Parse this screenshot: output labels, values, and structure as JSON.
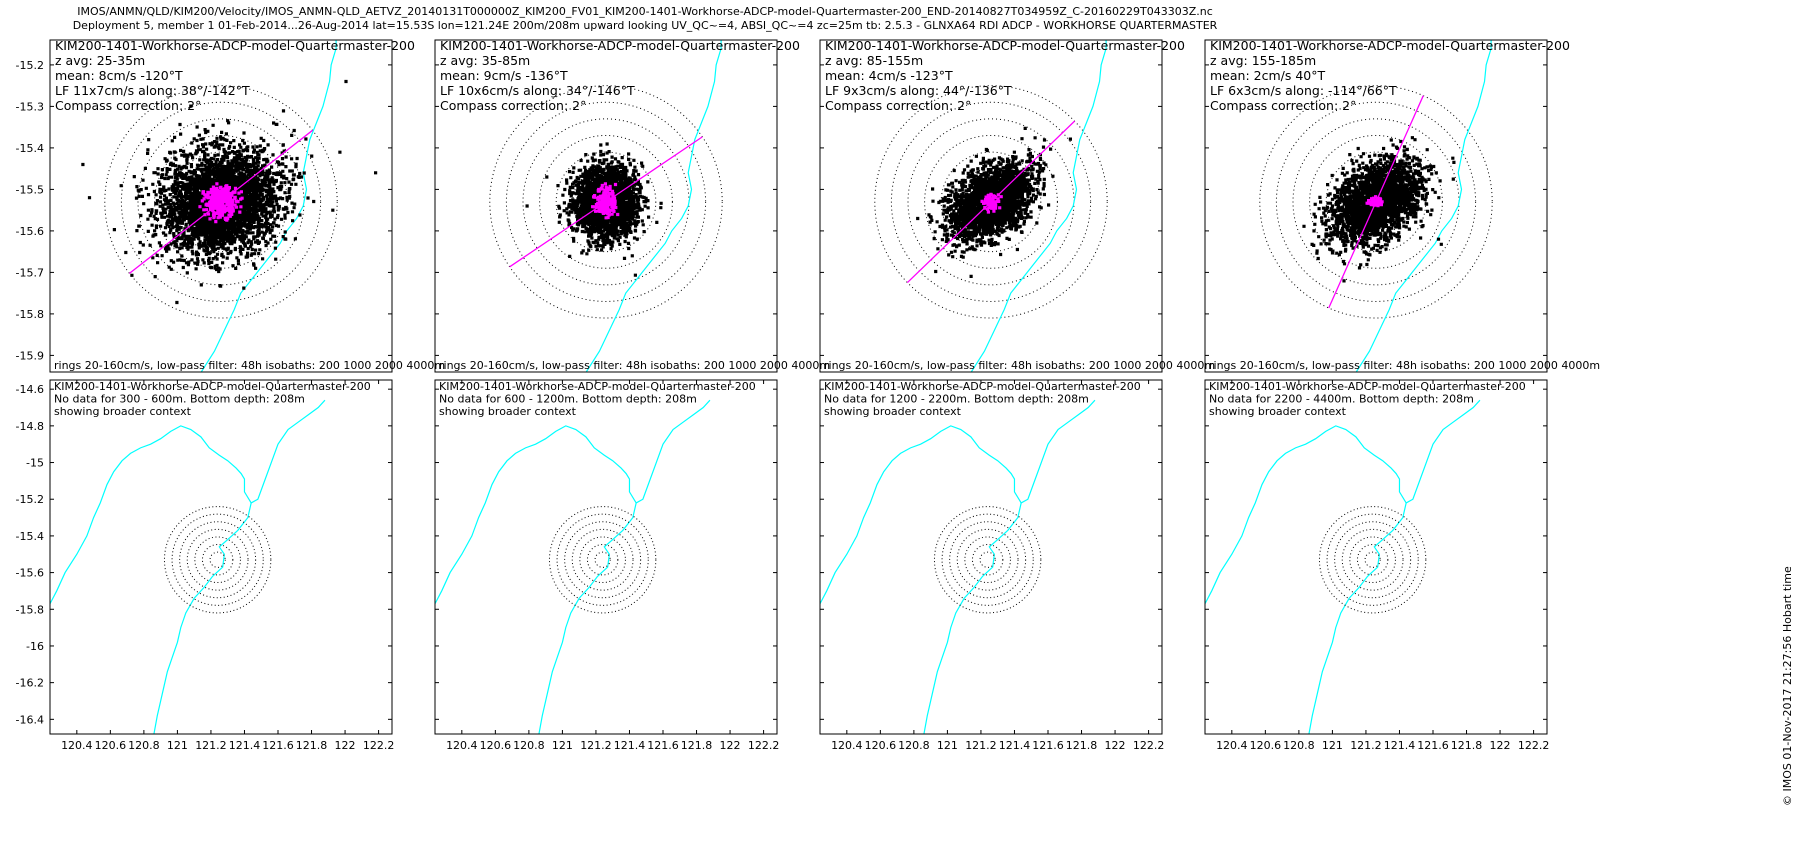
{
  "header": {
    "title_line1": "IMOS/ANMN/QLD/KIM200/Velocity/IMOS_ANMN-QLD_AETVZ_20140131T000000Z_KIM200_FV01_KIM200-1401-Workhorse-ADCP-model-Quartermaster-200_END-20140827T034959Z_C-20160229T043303Z.nc",
    "title_line2": "Deployment 5, member 1 01-Feb-2014...26-Aug-2014 lat=15.53S lon=121.24E 200m/208m upward looking UV_QC~=4, ABSI_QC~=4 zc=25m tb: 2.5.3 - GLNXA64 RDI ADCP - WORKHORSE QUARTERMASTER"
  },
  "side_note": "© IMOS 01-Nov-2017 21:27:56 Hobart time",
  "colors": {
    "scatter": "#000000",
    "lowpass": "#ff00ff",
    "coast": "#00ffff",
    "rings": "#000000",
    "axes": "#000000"
  },
  "chart_data": {
    "type": "scatter",
    "top_row": {
      "ylim": [
        -15.94,
        -15.14
      ],
      "xlim": [
        120.72,
        121.76
      ],
      "yticks": [
        -15.2,
        -15.3,
        -15.4,
        -15.5,
        -15.6,
        -15.7,
        -15.8,
        -15.9
      ],
      "center": [
        121.24,
        -15.53
      ],
      "footer": "rings 20-160cm/s, low-pass filter: 48h isobaths: 200 1000 2000 4000m",
      "coastline": [
        [
          121.59,
          -15.14
        ],
        [
          121.59,
          -15.16
        ],
        [
          121.575,
          -15.2
        ],
        [
          121.57,
          -15.24
        ],
        [
          121.55,
          -15.3
        ],
        [
          121.53,
          -15.34
        ],
        [
          121.51,
          -15.38
        ],
        [
          121.5,
          -15.42
        ],
        [
          121.49,
          -15.46
        ],
        [
          121.5,
          -15.5
        ],
        [
          121.49,
          -15.54
        ],
        [
          121.47,
          -15.57
        ],
        [
          121.44,
          -15.6
        ],
        [
          121.42,
          -15.63
        ],
        [
          121.39,
          -15.66
        ],
        [
          121.36,
          -15.69
        ],
        [
          121.33,
          -15.72
        ],
        [
          121.3,
          -15.75
        ],
        [
          121.28,
          -15.79
        ],
        [
          121.25,
          -15.84
        ],
        [
          121.22,
          -15.89
        ],
        [
          121.18,
          -15.94
        ]
      ]
    },
    "bottom_row": {
      "ylim": [
        -16.48,
        -14.55
      ],
      "xlim": [
        120.24,
        122.28
      ],
      "yticks": [
        -14.6,
        -14.8,
        -15,
        -15.2,
        -15.4,
        -15.6,
        -15.8,
        -16,
        -16.2,
        -16.4
      ],
      "xticks": [
        120.4,
        120.6,
        120.8,
        121,
        121.2,
        121.4,
        121.6,
        121.8,
        122,
        122.2
      ],
      "center": [
        121.24,
        -15.53
      ],
      "ring_max_deg": 0.29,
      "context_label": "showing broader context",
      "coastline": [
        [
          120.24,
          -15.77
        ],
        [
          120.28,
          -15.7
        ],
        [
          120.33,
          -15.6
        ],
        [
          120.4,
          -15.5
        ],
        [
          120.46,
          -15.4
        ],
        [
          120.5,
          -15.3
        ],
        [
          120.54,
          -15.22
        ],
        [
          120.58,
          -15.12
        ],
        [
          120.62,
          -15.05
        ],
        [
          120.67,
          -14.99
        ],
        [
          120.72,
          -14.95
        ],
        [
          120.78,
          -14.92
        ],
        [
          120.84,
          -14.9
        ],
        [
          120.9,
          -14.87
        ],
        [
          120.96,
          -14.83
        ],
        [
          121.02,
          -14.8
        ],
        [
          121.08,
          -14.82
        ],
        [
          121.14,
          -14.86
        ],
        [
          121.19,
          -14.92
        ],
        [
          121.25,
          -14.96
        ],
        [
          121.3,
          -14.99
        ],
        [
          121.35,
          -15.03
        ],
        [
          121.38,
          -15.06
        ],
        [
          121.4,
          -15.09
        ],
        [
          121.4,
          -15.16
        ],
        [
          121.44,
          -15.22
        ],
        [
          121.48,
          -15.2
        ],
        [
          121.52,
          -15.1
        ],
        [
          121.56,
          -15.0
        ],
        [
          121.6,
          -14.9
        ],
        [
          121.66,
          -14.82
        ],
        [
          121.72,
          -14.78
        ],
        [
          121.78,
          -14.74
        ],
        [
          121.84,
          -14.7
        ],
        [
          121.88,
          -14.66
        ]
      ],
      "coastline2": [
        [
          121.44,
          -15.22
        ],
        [
          121.42,
          -15.3
        ],
        [
          121.36,
          -15.37
        ],
        [
          121.3,
          -15.42
        ],
        [
          121.25,
          -15.46
        ],
        [
          121.28,
          -15.5
        ],
        [
          121.27,
          -15.57
        ],
        [
          121.21,
          -15.62
        ],
        [
          121.16,
          -15.68
        ],
        [
          121.1,
          -15.74
        ],
        [
          121.05,
          -15.82
        ],
        [
          121.02,
          -15.9
        ],
        [
          121.0,
          -15.98
        ],
        [
          120.97,
          -16.06
        ],
        [
          120.94,
          -16.14
        ],
        [
          120.92,
          -16.22
        ],
        [
          120.9,
          -16.3
        ],
        [
          120.88,
          -16.38
        ],
        [
          120.86,
          -16.48
        ]
      ]
    },
    "panels": [
      {
        "name": "KIM200-1401-Workhorse-ADCP-model-Quartermaster-200",
        "z_avg": "z avg: 25-35m",
        "mean": "mean: 8cm/s -120°T",
        "lf": "LF 11x7cm/s along: 38°/-142°T",
        "compass": "Compass correction: 2°",
        "no_data": "No data for 300 - 600m. Bottom depth: 208m",
        "ring_step_deg": 0.04,
        "ring_count": 7,
        "cloud": {
          "rx": 0.16,
          "ry": 0.11,
          "rot_deg": -10,
          "n": 3500
        },
        "lf_cloud": {
          "rx": 0.05,
          "ry": 0.035,
          "n": 300
        },
        "outliers": [
          [
            121.62,
            -15.24
          ],
          [
            120.82,
            -15.44
          ],
          [
            121.71,
            -15.46
          ],
          [
            120.84,
            -15.52
          ],
          [
            121.04,
            -15.71
          ],
          [
            121.18,
            -15.73
          ],
          [
            121.58,
            -15.55
          ],
          [
            121.4,
            -15.34
          ],
          [
            121.02,
            -15.38
          ],
          [
            121.2,
            -15.36
          ]
        ],
        "lf_axis_deg": 38
      },
      {
        "name": "KIM200-1401-Workhorse-ADCP-model-Quartermaster-200",
        "z_avg": "z avg: 35-85m",
        "mean": "mean: 9cm/s -136°T",
        "lf": "LF 10x6cm/s along: 34°/-146°T",
        "compass": "Compass correction: 2°",
        "no_data": "No data for 600 - 1200m. Bottom depth: 208m",
        "ring_step_deg": 0.04,
        "ring_count": 7,
        "cloud": {
          "rx": 0.085,
          "ry": 0.075,
          "rot_deg": 0,
          "n": 2500
        },
        "lf_cloud": {
          "rx": 0.03,
          "ry": 0.035,
          "n": 180
        },
        "outliers": [
          [
            121.15,
            -15.6
          ],
          [
            121.32,
            -15.66
          ],
          [
            121.06,
            -15.47
          ],
          [
            121.0,
            -15.54
          ]
        ],
        "lf_axis_deg": 34
      },
      {
        "name": "KIM200-1401-Workhorse-ADCP-model-Quartermaster-200",
        "z_avg": "z avg: 85-155m",
        "mean": "mean: 4cm/s -123°T",
        "lf": "LF 9x3cm/s along: 44°/-136°T",
        "compass": "Compass correction: 2°",
        "no_data": "No data for 1200 - 2200m. Bottom depth: 208m",
        "ring_step_deg": 0.04,
        "ring_count": 7,
        "cloud": {
          "rx": 0.12,
          "ry": 0.07,
          "rot_deg": -25,
          "n": 2500
        },
        "lf_cloud": {
          "rx": 0.025,
          "ry": 0.018,
          "n": 80
        },
        "outliers": [
          [
            121.4,
            -15.45
          ],
          [
            121.1,
            -15.6
          ]
        ],
        "lf_axis_deg": 44
      },
      {
        "name": "KIM200-1401-Workhorse-ADCP-model-Quartermaster-200",
        "z_avg": "z avg: 155-185m",
        "mean": "mean: 2cm/s 40°T",
        "lf": "LF 6x3cm/s along: -114°/66°T",
        "compass": "Compass correction: 2°",
        "no_data": "No data for 2200 - 4400m. Bottom depth: 208m",
        "ring_step_deg": 0.04,
        "ring_count": 7,
        "cloud": {
          "rx": 0.13,
          "ry": 0.075,
          "rot_deg": -25,
          "n": 2500
        },
        "lf_cloud": {
          "rx": 0.02,
          "ry": 0.01,
          "n": 60
        },
        "outliers": [
          [
            121.43,
            -15.62
          ],
          [
            121.38,
            -15.59
          ]
        ],
        "lf_axis_deg": 66
      }
    ]
  }
}
